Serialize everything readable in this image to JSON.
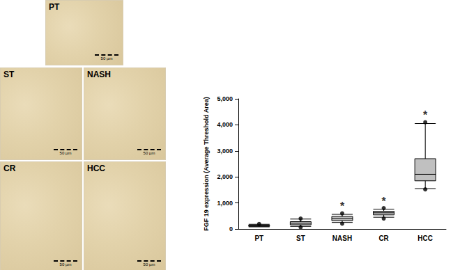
{
  "chart_data": {
    "type": "boxplot",
    "categories": [
      "PT",
      "ST",
      "NASH",
      "CR",
      "HCC"
    ],
    "boxes": [
      [
        80,
        100,
        125,
        150,
        180
      ],
      [
        100,
        160,
        220,
        280,
        380
      ],
      [
        250,
        320,
        400,
        480,
        560
      ],
      [
        450,
        540,
        620,
        680,
        760
      ],
      [
        1550,
        1850,
        2100,
        2700,
        4050
      ]
    ],
    "outliers": [
      [
        190
      ],
      [
        400,
        60
      ],
      [
        600,
        200
      ],
      [
        800,
        400
      ],
      [
        4100,
        1520
      ]
    ],
    "significance": [
      null,
      null,
      "*",
      "*",
      "*"
    ],
    "color": "#c0c0c0",
    "y_label": "FGF 19 expression (Average Threshold Area)",
    "ylim": [
      0,
      5000
    ],
    "yticks": [
      0,
      1000,
      2000,
      3000,
      4000,
      5000
    ],
    "grid": false
  },
  "panels": [
    {
      "label": "PT"
    },
    {
      "label": "ST"
    },
    {
      "label": "NASH"
    },
    {
      "label": "CR"
    },
    {
      "label": "HCC"
    }
  ],
  "scale_bar": "50 µm"
}
